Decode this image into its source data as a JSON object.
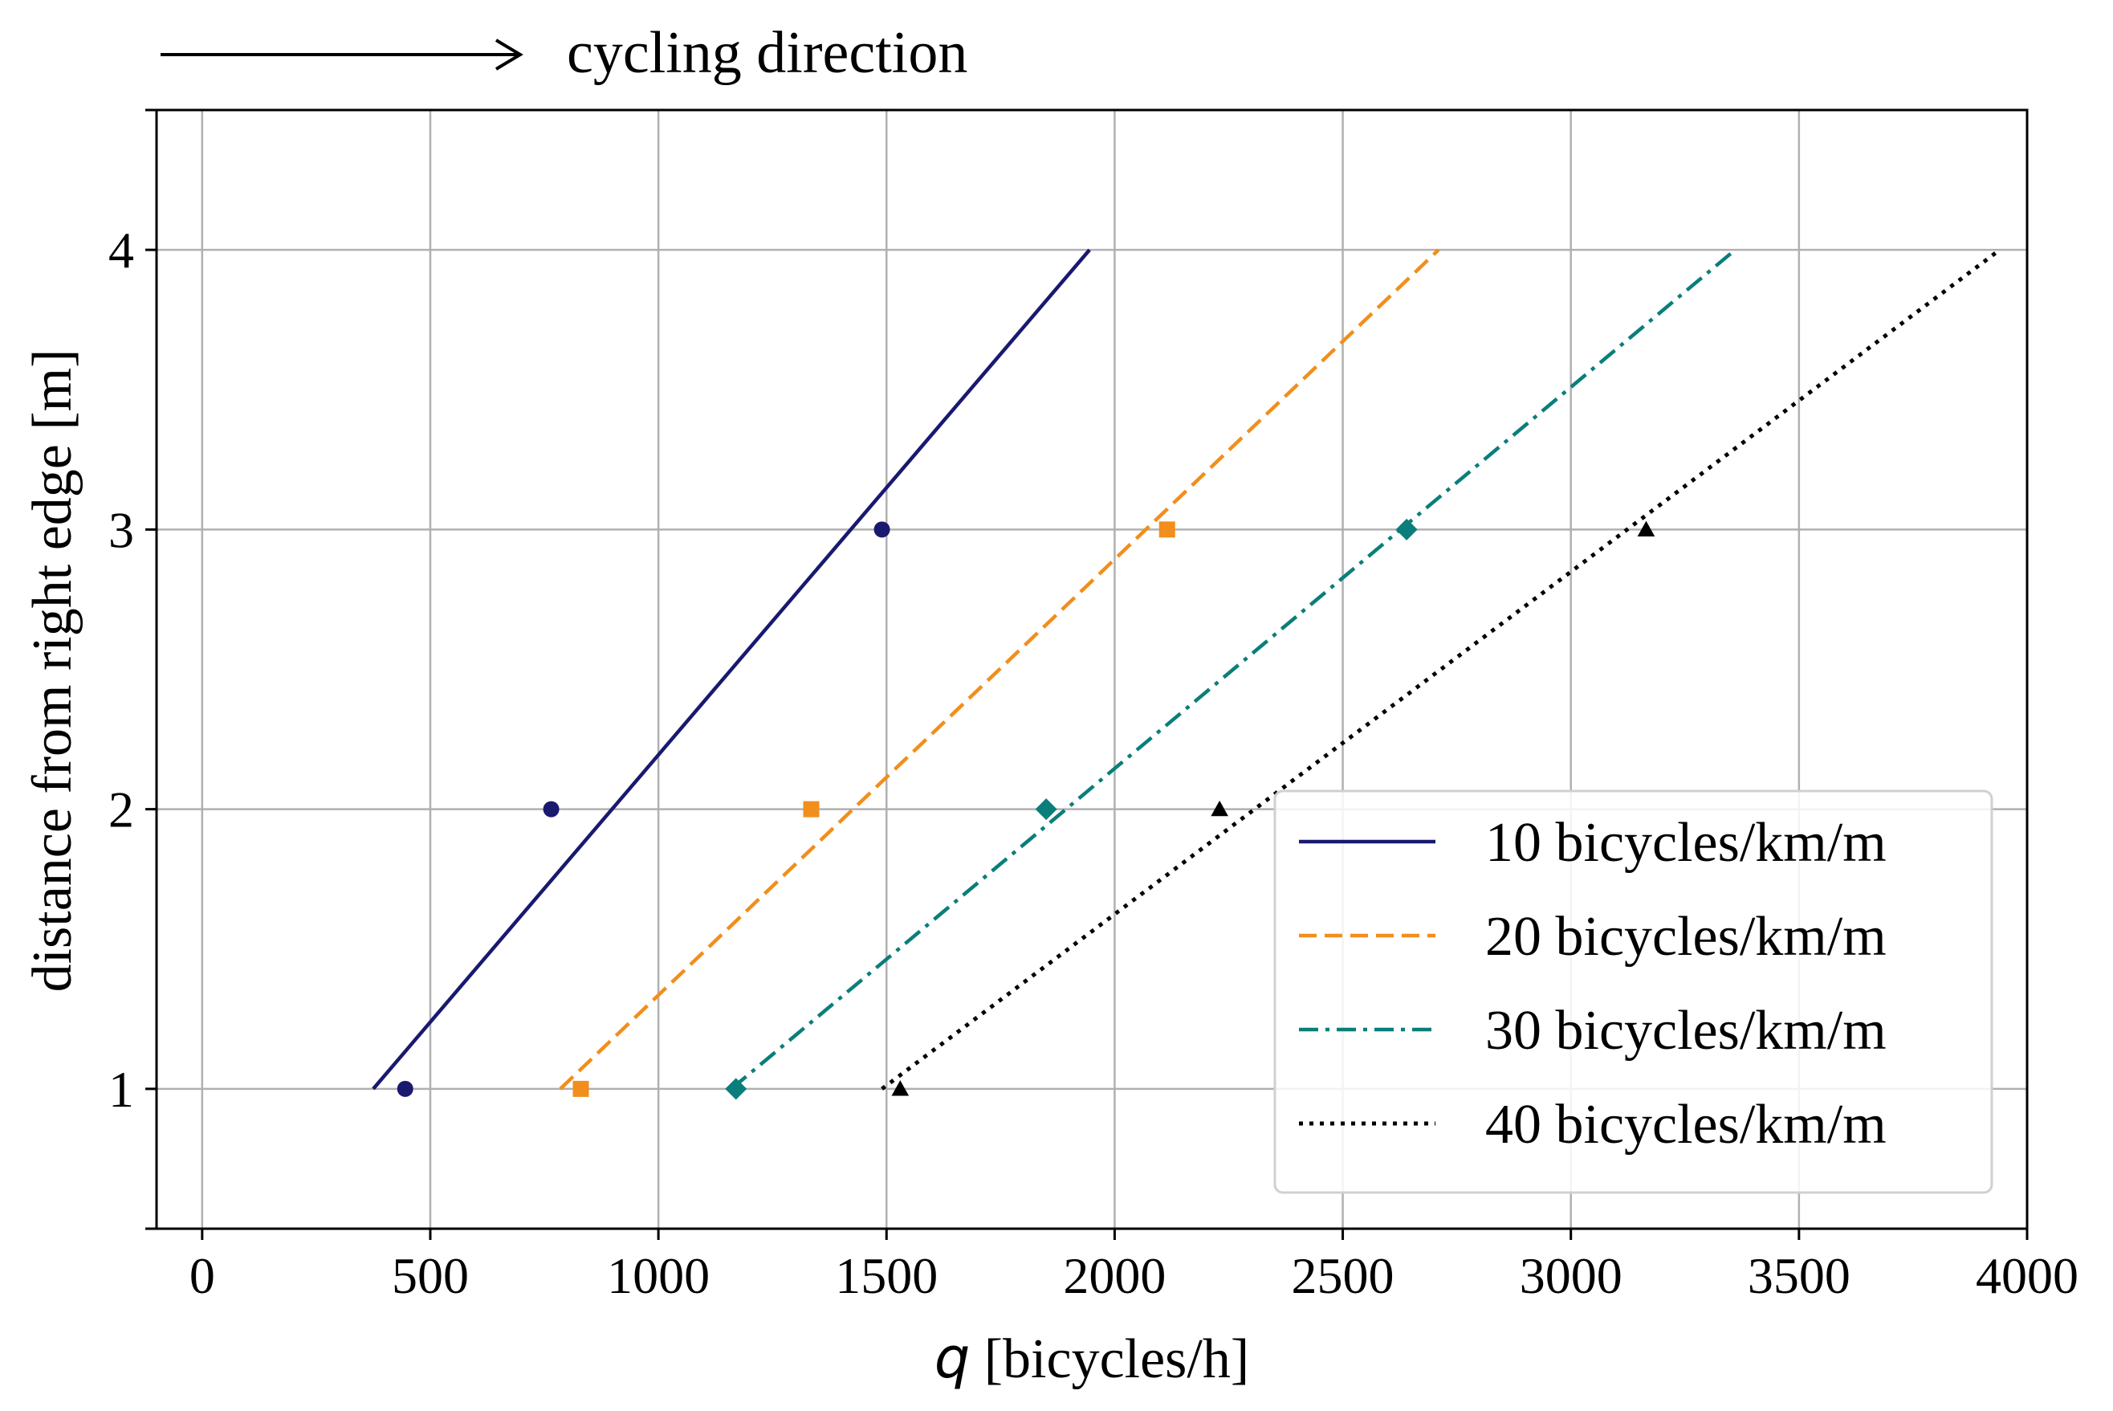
{
  "annotation": {
    "text": "cycling direction"
  },
  "chart_data": {
    "type": "line",
    "xlabel_var": "q",
    "xlabel_unit": " [bicycles/h]",
    "ylabel": "distance from right edge [m]",
    "xlim": [
      -100,
      4000
    ],
    "ylim": [
      0.5,
      4.5
    ],
    "xticks": [
      0,
      500,
      1000,
      1500,
      2000,
      2500,
      3000,
      3500,
      4000
    ],
    "yticks": [
      1,
      2,
      3,
      4
    ],
    "grid": true,
    "legend_position": "lower-right",
    "series": [
      {
        "name": "10 bicycles/km/m",
        "color": "#191970",
        "dash": "solid",
        "marker": "circle",
        "line": [
          [
            375,
            1
          ],
          [
            1945,
            4
          ]
        ],
        "points": [
          [
            445,
            1
          ],
          [
            765,
            2
          ],
          [
            1490,
            3
          ]
        ]
      },
      {
        "name": "20 bicycles/km/m",
        "color": "#f28e1c",
        "dash": "dashed",
        "marker": "square",
        "line": [
          [
            785,
            1
          ],
          [
            2710,
            4
          ]
        ],
        "points": [
          [
            830,
            1
          ],
          [
            1335,
            2
          ],
          [
            2115,
            3
          ]
        ]
      },
      {
        "name": "30 bicycles/km/m",
        "color": "#0a7e7a",
        "dash": "dashdot",
        "marker": "diamond",
        "line": [
          [
            1160,
            1
          ],
          [
            3360,
            4
          ]
        ],
        "points": [
          [
            1170,
            1
          ],
          [
            1850,
            2
          ],
          [
            2640,
            3
          ]
        ]
      },
      {
        "name": "40 bicycles/km/m",
        "color": "#000000",
        "dash": "dotted",
        "marker": "triangle",
        "line": [
          [
            1490,
            1
          ],
          [
            3940,
            4
          ]
        ],
        "points": [
          [
            1530,
            1
          ],
          [
            2230,
            2
          ],
          [
            3165,
            3
          ]
        ]
      }
    ]
  }
}
